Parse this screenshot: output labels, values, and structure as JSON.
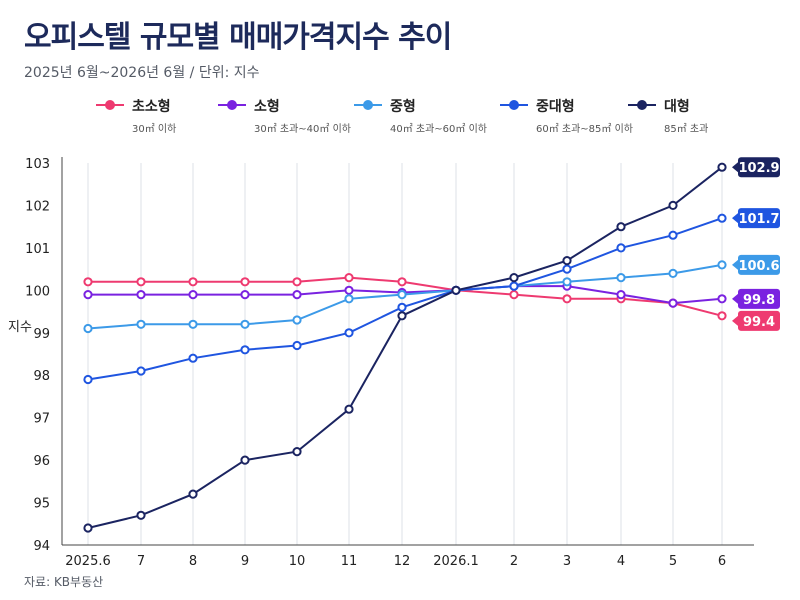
{
  "header": {
    "title": "오피스텔 규모별 매매가격지수 추이",
    "subtitle": "2025년 6월~2026년 6월 / 단위: 지수",
    "source": "자료: KB부동산"
  },
  "chart_data": {
    "type": "line",
    "ylabel": "지수",
    "xlabel": "",
    "ylim": [
      94,
      103
    ],
    "yticks": [
      94,
      95,
      96,
      97,
      98,
      99,
      100,
      101,
      102,
      103
    ],
    "categories": [
      "2025.6",
      "7",
      "8",
      "9",
      "10",
      "11",
      "12",
      "2026.1",
      "2",
      "3",
      "4",
      "5",
      "6"
    ],
    "grid": "vertical",
    "legend_position": "top",
    "series": [
      {
        "name": "초소형",
        "note": "30㎡ 이하",
        "color": "#ee3a70",
        "values": [
          100.2,
          100.2,
          100.2,
          100.2,
          100.2,
          100.3,
          100.2,
          100.0,
          99.9,
          99.8,
          99.8,
          99.7,
          99.4
        ],
        "end_label": "99.4"
      },
      {
        "name": "소형",
        "note": "30㎡ 초과~40㎡ 이하",
        "color": "#7a22e0",
        "values": [
          99.9,
          99.9,
          99.9,
          99.9,
          99.9,
          100.0,
          99.95,
          100.0,
          100.1,
          100.1,
          99.9,
          99.7,
          99.8
        ],
        "end_label": "99.8"
      },
      {
        "name": "중형",
        "note": "40㎡ 초과~60㎡ 이하",
        "color": "#3c9ae8",
        "values": [
          99.1,
          99.2,
          99.2,
          99.2,
          99.3,
          99.8,
          99.9,
          100.0,
          100.1,
          100.2,
          100.3,
          100.4,
          100.6
        ],
        "end_label": "100.6"
      },
      {
        "name": "중대형",
        "note": "60㎡ 초과~85㎡ 이하",
        "color": "#1f55e0",
        "values": [
          97.9,
          98.1,
          98.4,
          98.6,
          98.7,
          99.0,
          99.6,
          100.0,
          100.1,
          100.5,
          101.0,
          101.3,
          101.7
        ],
        "end_label": "101.7"
      },
      {
        "name": "대형",
        "note": "85㎡ 초과",
        "color": "#1b2461",
        "values": [
          94.4,
          94.7,
          95.2,
          96.0,
          96.2,
          97.2,
          99.4,
          100.0,
          100.3,
          100.7,
          101.5,
          102.0,
          102.9
        ],
        "end_label": "102.9"
      }
    ]
  }
}
